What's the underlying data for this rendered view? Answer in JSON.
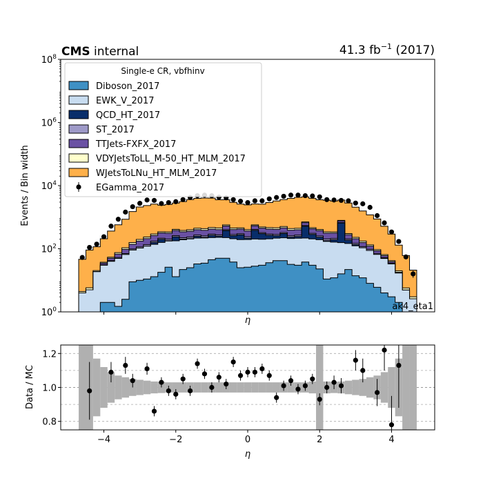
{
  "header": {
    "experiment": "CMS",
    "status": "internal",
    "lumi_prefix": "41.3 fb",
    "lumi_exponent": "−1",
    "lumi_suffix": " (2017)"
  },
  "chart_data": [
    {
      "type": "area",
      "subtype": "stacked-step-histogram",
      "ylabel": "Events / Bin width",
      "xlabel": "η",
      "annotation": "ak4_eta1",
      "yscale": "log",
      "ylim": [
        1,
        100000000
      ],
      "xlim": [
        -5.2,
        5.2
      ],
      "yticks": [
        {
          "value": 1,
          "mantissa": "10",
          "exp": "0"
        },
        {
          "value": 100,
          "mantissa": "10",
          "exp": "2"
        },
        {
          "value": 10000,
          "mantissa": "10",
          "exp": "4"
        },
        {
          "value": 1000000,
          "mantissa": "10",
          "exp": "6"
        },
        {
          "value": 100000000,
          "mantissa": "10",
          "exp": "8"
        }
      ],
      "xticks": [
        -4,
        -2,
        0,
        2,
        4
      ],
      "legend": {
        "title": "Single-e CR, vbfhinv",
        "placement": "top-left",
        "entries": [
          "Diboson_2017",
          "EWK_V_2017",
          "QCD_HT_2017",
          "ST_2017",
          "TTJets-FXFX_2017",
          "VDYJetsToLL_M-50_HT_MLM_2017",
          "WJetsToLNu_HT_MLM_2017",
          "EGamma_2017"
        ]
      },
      "bin_edges": [
        -4.7,
        -4.5,
        -4.3,
        -4.1,
        -3.9,
        -3.7,
        -3.5,
        -3.3,
        -3.1,
        -2.9,
        -2.7,
        -2.5,
        -2.3,
        -2.1,
        -1.9,
        -1.7,
        -1.5,
        -1.3,
        -1.1,
        -0.9,
        -0.7,
        -0.5,
        -0.3,
        -0.1,
        0.1,
        0.3,
        0.5,
        0.7,
        0.9,
        1.1,
        1.3,
        1.5,
        1.7,
        1.9,
        2.1,
        2.3,
        2.5,
        2.7,
        2.9,
        3.1,
        3.3,
        3.5,
        3.7,
        3.9,
        4.1,
        4.3,
        4.5,
        4.7
      ],
      "bin_centers": [
        -4.6,
        -4.4,
        -4.2,
        -4.0,
        -3.8,
        -3.6,
        -3.4,
        -3.2,
        -3.0,
        -2.8,
        -2.6,
        -2.4,
        -2.2,
        -2.0,
        -1.8,
        -1.6,
        -1.4,
        -1.2,
        -1.0,
        -0.8,
        -0.6,
        -0.4,
        -0.2,
        0.0,
        0.2,
        0.4,
        0.6,
        0.8,
        1.0,
        1.2,
        1.4,
        1.6,
        1.8,
        2.0,
        2.2,
        2.4,
        2.6,
        2.8,
        3.0,
        3.2,
        3.4,
        3.6,
        3.8,
        4.0,
        4.2,
        4.4,
        4.6
      ],
      "series": [
        {
          "name": "Diboson_2017",
          "color": "#3f90c4",
          "values": [
            0.5,
            0.5,
            0.8,
            2.0,
            2.0,
            1.5,
            2.5,
            9.0,
            10.0,
            11.0,
            13.0,
            18.0,
            26.0,
            13.0,
            22.0,
            25.0,
            33.0,
            35.0,
            45.0,
            50.0,
            50.0,
            38.0,
            25.0,
            26.0,
            28.0,
            30.0,
            36.0,
            42.0,
            42.0,
            32.0,
            30.0,
            38.0,
            30.0,
            23.0,
            11.0,
            12.0,
            16.0,
            22.0,
            14.0,
            12.0,
            8.0,
            6.0,
            4.0,
            3.0,
            2.0,
            0.9,
            0.6
          ]
        },
        {
          "name": "EWK_V_2017",
          "color": "#c8dcf0",
          "values": [
            3.5,
            4.5,
            18.0,
            28.0,
            38.0,
            48.0,
            63.0,
            82.0,
            95.0,
            110.0,
            125.0,
            140.0,
            150.0,
            165.0,
            170.0,
            180.0,
            185.0,
            185.0,
            180.0,
            180.0,
            175.0,
            170.0,
            170.0,
            170.0,
            175.0,
            170.0,
            170.0,
            175.0,
            180.0,
            180.0,
            185.0,
            180.0,
            175.0,
            170.0,
            160.0,
            150.0,
            140.0,
            125.0,
            110.0,
            95.0,
            80.0,
            60.0,
            45.0,
            30.0,
            15.0,
            4.0,
            2.0
          ]
        },
        {
          "name": "QCD_HT_2017",
          "color": "#082d6a",
          "values": [
            0.0,
            0.0,
            0.0,
            0.0,
            0.0,
            0.0,
            0.0,
            0.0,
            0.0,
            0.0,
            20.0,
            40.0,
            5.0,
            60.0,
            10.0,
            5.0,
            30.0,
            10.0,
            40.0,
            20.0,
            150.0,
            50.0,
            80.0,
            20.0,
            180.0,
            100.0,
            60.0,
            40.0,
            80.0,
            20.0,
            30.0,
            300.0,
            80.0,
            40.0,
            10.0,
            30.0,
            500.0,
            40.0,
            10.0,
            0.0,
            0.0,
            0.0,
            0.0,
            0.0,
            0.0,
            0.0,
            0.0
          ]
        },
        {
          "name": "ST_2017",
          "color": "#9e9ac8",
          "values": [
            0.0,
            0.0,
            0.0,
            1.0,
            2.0,
            3.0,
            5.0,
            8.0,
            10.0,
            14.0,
            16.0,
            18.0,
            20.0,
            22.0,
            22.0,
            24.0,
            24.0,
            25.0,
            25.0,
            25.0,
            25.0,
            24.0,
            24.0,
            24.0,
            24.0,
            24.0,
            25.0,
            25.0,
            25.0,
            25.0,
            25.0,
            24.0,
            24.0,
            22.0,
            22.0,
            20.0,
            18.0,
            16.0,
            14.0,
            10.0,
            8.0,
            5.0,
            3.0,
            2.0,
            1.0,
            0.0,
            0.0
          ]
        },
        {
          "name": "TTJets-FXFX_2017",
          "color": "#6a51a3",
          "values": [
            0.0,
            0.0,
            0.0,
            4.0,
            8.0,
            15.0,
            25.0,
            40.0,
            60.0,
            75.0,
            90.0,
            100.0,
            110.0,
            120.0,
            120.0,
            125.0,
            130.0,
            130.0,
            130.0,
            130.0,
            125.0,
            125.0,
            120.0,
            125.0,
            125.0,
            125.0,
            130.0,
            130.0,
            130.0,
            130.0,
            130.0,
            125.0,
            120.0,
            120.0,
            110.0,
            100.0,
            90.0,
            75.0,
            60.0,
            40.0,
            25.0,
            15.0,
            8.0,
            4.0,
            0.0,
            0.0,
            0.0
          ]
        },
        {
          "name": "VDYJetsToLL_M-50_HT_MLM_2017",
          "color": "#ffffcc",
          "values": [
            0.4,
            0.8,
            1.5,
            2.5,
            4.0,
            8.0,
            12.0,
            18.0,
            22.0,
            25.0,
            30.0,
            30.0,
            30.0,
            32.0,
            35.0,
            40.0,
            45.0,
            48.0,
            50.0,
            50.0,
            48.0,
            45.0,
            40.0,
            40.0,
            40.0,
            42.0,
            45.0,
            50.0,
            50.0,
            48.0,
            45.0,
            40.0,
            35.0,
            32.0,
            30.0,
            30.0,
            28.0,
            25.0,
            22.0,
            18.0,
            12.0,
            8.0,
            5.0,
            3.0,
            2.0,
            0.8,
            0.4
          ]
        },
        {
          "name": "WJetsToLNu_HT_MLM_2017",
          "color": "#feb04a",
          "values": [
            42.0,
            85.0,
            95.0,
            170.0,
            310.0,
            500.0,
            750.0,
            1350.0,
            1900.0,
            2100.0,
            2300.0,
            2050.0,
            2200.0,
            2400.0,
            2750.0,
            3200.0,
            3500.0,
            3600.0,
            3550.0,
            3100.0,
            3000.0,
            2500.0,
            2150.0,
            2050.0,
            2050.0,
            2100.0,
            2450.0,
            2800.0,
            3100.0,
            3500.0,
            3800.0,
            3700.0,
            3500.0,
            3150.0,
            3100.0,
            2900.0,
            2700.0,
            2500.0,
            1850.0,
            1400.0,
            1050.0,
            780.0,
            450.0,
            250.0,
            110.0,
            55.0,
            18.0
          ]
        },
        {
          "name": "EGamma_2017",
          "color": "#000000",
          "marker": "errorbar-point",
          "values": [
            53.0,
            110.0,
            140.0,
            240.0,
            520.0,
            860.0,
            1450.0,
            2150.0,
            2750.0,
            3500.0,
            3400.0,
            2700.0,
            2900.0,
            3100.0,
            3600.0,
            4200.0,
            4800.0,
            5000.0,
            4800.0,
            4300.0,
            4100.0,
            3600.0,
            3200.0,
            2900.0,
            3300.0,
            3300.0,
            3800.0,
            4200.0,
            4600.0,
            5000.0,
            5000.0,
            4800.0,
            4700.0,
            4400.0,
            3600.0,
            3500.0,
            3400.0,
            3300.0,
            2800.0,
            2650.0,
            2050.0,
            1120.0,
            660.0,
            340.0,
            170.0,
            55.0,
            16.0
          ]
        }
      ]
    },
    {
      "type": "scatter",
      "ylabel": "Data / MC",
      "xlabel": "η",
      "xlim": [
        -5.2,
        5.2
      ],
      "ylim": [
        0.75,
        1.25
      ],
      "yticks": [
        0.8,
        1.0,
        1.2
      ],
      "xticks": [
        -4,
        -2,
        0,
        2,
        4
      ],
      "grid": "horizontal dashed at 0.8, 0.9, 1.0, 1.1, 1.2",
      "mc_uncertainty": {
        "color": "#b0b0b0",
        "relative_halfwidth": [
          0.5,
          0.5,
          0.17,
          0.12,
          0.09,
          0.07,
          0.06,
          0.05,
          0.045,
          0.04,
          0.035,
          0.033,
          0.03,
          0.03,
          0.03,
          0.03,
          0.03,
          0.03,
          0.03,
          0.03,
          0.03,
          0.03,
          0.03,
          0.03,
          0.03,
          0.03,
          0.03,
          0.03,
          0.03,
          0.03,
          0.03,
          0.03,
          0.035,
          0.5,
          0.035,
          0.033,
          0.035,
          0.04,
          0.045,
          0.05,
          0.06,
          0.07,
          0.09,
          0.12,
          0.17,
          0.25,
          0.5
        ]
      },
      "points": {
        "x": [
          -4.4,
          -3.8,
          -3.4,
          -3.2,
          -2.8,
          -2.6,
          -2.4,
          -2.2,
          -2.0,
          -1.8,
          -1.6,
          -1.4,
          -1.2,
          -1.0,
          -0.8,
          -0.6,
          -0.4,
          -0.2,
          0.0,
          0.2,
          0.4,
          0.6,
          0.8,
          1.0,
          1.2,
          1.4,
          1.6,
          1.8,
          2.0,
          2.2,
          2.4,
          2.6,
          3.0,
          3.2,
          3.6,
          3.8,
          4.0,
          4.2
        ],
        "y": [
          0.98,
          1.09,
          1.13,
          1.04,
          1.11,
          0.86,
          1.03,
          0.98,
          0.96,
          1.05,
          0.98,
          1.14,
          1.08,
          1.0,
          1.06,
          1.02,
          1.15,
          1.07,
          1.09,
          1.09,
          1.11,
          1.07,
          0.94,
          1.01,
          1.04,
          0.99,
          1.01,
          1.05,
          0.93,
          1.0,
          1.03,
          1.01,
          1.16,
          1.1,
          0.97,
          1.22,
          0.78,
          1.13
        ],
        "err": [
          0.17,
          0.06,
          0.05,
          0.04,
          0.035,
          0.03,
          0.03,
          0.03,
          0.03,
          0.03,
          0.03,
          0.03,
          0.03,
          0.03,
          0.03,
          0.03,
          0.03,
          0.03,
          0.03,
          0.03,
          0.03,
          0.03,
          0.03,
          0.03,
          0.03,
          0.03,
          0.03,
          0.03,
          0.035,
          0.035,
          0.04,
          0.045,
          0.06,
          0.07,
          0.08,
          0.12,
          0.17,
          0.25
        ]
      }
    }
  ]
}
